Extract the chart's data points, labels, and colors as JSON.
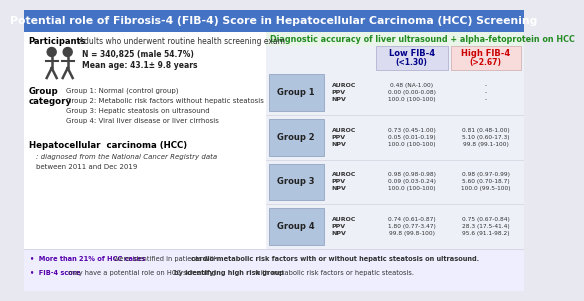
{
  "title": "Potential role of Fibrosis-4 (FIB-4) Score in Hepatocellular Carcinoma (HCC) Screening",
  "title_bg": "#4472C4",
  "title_color": "#FFFFFF",
  "main_bg": "#E8E8F0",
  "left_bg": "#FFFFFF",
  "right_bg": "#EEF0F8",
  "diag_label": "Diagnostic accuracy of liver ultrasound + alpha-fetoprotein on HCC",
  "diag_label_color": "#228B22",
  "diag_bg": "#E8F5E8",
  "participants_label": "Participants",
  "participants_text": ": Adults who underwent routine health screening exam",
  "n_text": "N = 340,825 (male 54.7%)",
  "mean_text": "Mean age: 43.1± 9.8 years",
  "group_category_title": "Group\ncategory",
  "group_lines": [
    "Group 1: Normal (control group)",
    "Group 2: Metabolic risk factors without hepatic steatosis",
    "Group 3: Hepatic steatosis on ultrasound",
    "Group 4: Viral liver disease or liver cirrhosis"
  ],
  "hcc_title": "Hepatocellular  carcinoma (HCC)",
  "hcc_line1": ": diagnosed from the National Cancer Registry data",
  "hcc_line2": "between 2011 and Dec 2019",
  "low_fib_label1": "Low FIB-4",
  "low_fib_label2": "(<1.30)",
  "high_fib_label1": "High FIB-4",
  "high_fib_label2": "(>2.67)",
  "low_fib_color": "#00008B",
  "high_fib_color": "#CC0000",
  "low_fib_bg": "#DCDCF0",
  "high_fib_bg": "#F8DCDC",
  "group_box_color": "#B0C4DE",
  "group_box_edge": "#8899BB",
  "groups": [
    "Group 1",
    "Group 2",
    "Group 3",
    "Group 4"
  ],
  "low_fib_data": [
    [
      "0.48 (NA-1.00)",
      "0.00 (0.00-0.08)",
      "100.0 (100-100)"
    ],
    [
      "0.73 (0.45-1.00)",
      "0.05 (0.01-0.19)",
      "100.0 (100-100)"
    ],
    [
      "0.98 (0.98-0.98)",
      "0.09 (0.03-0.24)",
      "100.0 (100-100)"
    ],
    [
      "0.74 (0.61-0.87)",
      "1.80 (0.77-3.47)",
      "99.8 (99.8-100)"
    ]
  ],
  "high_fib_data": [
    [
      "-",
      "-",
      "-"
    ],
    [
      "0.81 (0.48-1.00)",
      "5.10 (0.60-17.3)",
      "99.8 (99.1-100)"
    ],
    [
      "0.98 (0.97-0.99)",
      "5.60 (0.70-18.7)",
      "100.0 (99.5-100)"
    ],
    [
      "0.75 (0.67-0.84)",
      "28.3 (17.5-41.4)",
      "95.6 (91.1-98.2)"
    ]
  ],
  "metrics": [
    "AUROC",
    "PPV",
    "NPV"
  ],
  "footer_bg": "#EEEEFF",
  "footer1_parts": [
    {
      "text": "•  More than 21% of HCC cases ",
      "bold": true,
      "color": "#5500AA"
    },
    {
      "text": "were identified in patients with ",
      "bold": false,
      "color": "#333333"
    },
    {
      "text": "cardio-metabolic risk factors with or without hepatic steatosis on ultrasound.",
      "bold": true,
      "color": "#333333"
    }
  ],
  "footer2_parts": [
    {
      "text": "•  FIB-4 score",
      "bold": true,
      "color": "#5500AA"
    },
    {
      "text": " may have a potential role on HCC screening",
      "bold": false,
      "color": "#333333"
    },
    {
      "text": "by identifying high risk group ",
      "bold": true,
      "color": "#333333"
    },
    {
      "text": "with metabolic risk factors or hepatic steatosis.",
      "bold": false,
      "color": "#333333"
    }
  ]
}
